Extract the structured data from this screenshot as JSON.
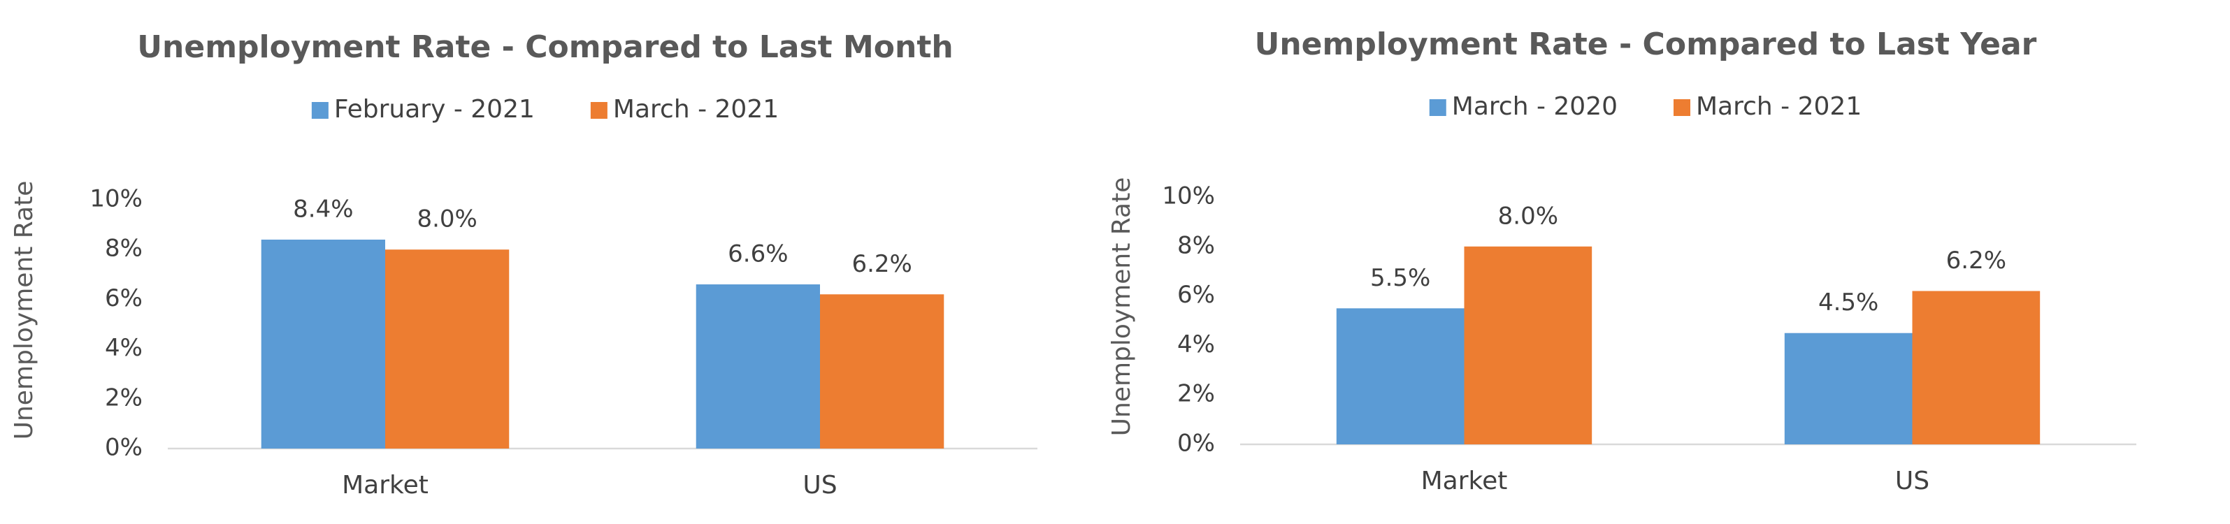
{
  "chart_data": [
    {
      "type": "bar",
      "title": "Unemployment Rate - Compared to Last Month",
      "y_label": "Unemployment Rate",
      "categories": [
        "Market",
        "US"
      ],
      "series": [
        {
          "name": "February - 2021",
          "color": "#5b9bd5",
          "values": [
            8.4,
            6.6
          ],
          "value_labels": [
            "8.4%",
            "6.6%"
          ]
        },
        {
          "name": "March - 2021",
          "color": "#ed7d31",
          "values": [
            8.0,
            6.2
          ],
          "value_labels": [
            "8.0%",
            "6.2%"
          ]
        }
      ],
      "ylim": [
        0,
        10
      ],
      "yticks": [
        {
          "value": 0,
          "label": "0%"
        },
        {
          "value": 2,
          "label": "2%"
        },
        {
          "value": 4,
          "label": "4%"
        },
        {
          "value": 6,
          "label": "6%"
        },
        {
          "value": 8,
          "label": "8%"
        },
        {
          "value": 10,
          "label": "10%"
        }
      ],
      "grid": false,
      "legend": "top"
    },
    {
      "type": "bar",
      "title": "Unemployment Rate - Compared to Last Year",
      "y_label": "Unemployment Rate",
      "categories": [
        "Market",
        "US"
      ],
      "series": [
        {
          "name": "March - 2020",
          "color": "#5b9bd5",
          "values": [
            5.5,
            4.5
          ],
          "value_labels": [
            "5.5%",
            "4.5%"
          ]
        },
        {
          "name": "March - 2021",
          "color": "#ed7d31",
          "values": [
            8.0,
            6.2
          ],
          "value_labels": [
            "8.0%",
            "6.2%"
          ]
        }
      ],
      "ylim": [
        0,
        10
      ],
      "yticks": [
        {
          "value": 0,
          "label": "0%"
        },
        {
          "value": 2,
          "label": "2%"
        },
        {
          "value": 4,
          "label": "4%"
        },
        {
          "value": 6,
          "label": "6%"
        },
        {
          "value": 8,
          "label": "8%"
        },
        {
          "value": 10,
          "label": "10%"
        }
      ],
      "grid": false,
      "legend": "top"
    }
  ]
}
